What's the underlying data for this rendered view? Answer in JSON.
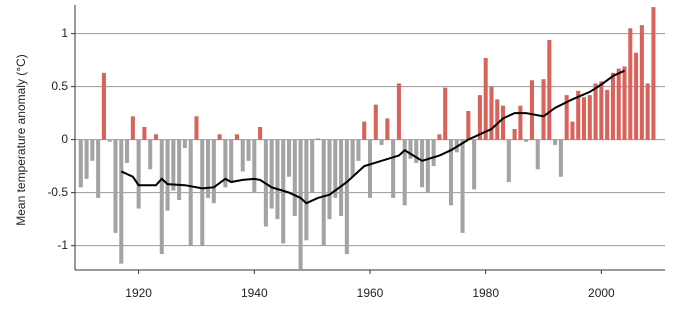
{
  "chart_data": {
    "type": "bar",
    "y_label": "Mean temperature anomaly (°C)",
    "x": [
      1910,
      1911,
      1912,
      1913,
      1914,
      1915,
      1916,
      1917,
      1918,
      1919,
      1920,
      1921,
      1922,
      1923,
      1924,
      1925,
      1926,
      1927,
      1928,
      1929,
      1930,
      1931,
      1932,
      1933,
      1934,
      1935,
      1936,
      1937,
      1938,
      1939,
      1940,
      1941,
      1942,
      1943,
      1944,
      1945,
      1946,
      1947,
      1948,
      1949,
      1950,
      1951,
      1952,
      1953,
      1954,
      1955,
      1956,
      1957,
      1958,
      1959,
      1960,
      1961,
      1962,
      1963,
      1964,
      1965,
      1966,
      1967,
      1968,
      1969,
      1970,
      1971,
      1972,
      1973,
      1974,
      1975,
      1976,
      1977,
      1978,
      1979,
      1980,
      1981,
      1982,
      1983,
      1984,
      1985,
      1986,
      1987,
      1988,
      1989,
      1990,
      1991,
      1992,
      1993,
      1994,
      1995,
      1996,
      1997,
      1998,
      1999,
      2000,
      2001,
      2002,
      2003,
      2004,
      2005,
      2006,
      2007,
      2008,
      2009
    ],
    "values": [
      -0.45,
      -0.37,
      -0.2,
      -0.55,
      0.63,
      -0.02,
      -0.88,
      -1.17,
      -0.22,
      0.22,
      -0.65,
      0.12,
      -0.28,
      0.05,
      -1.08,
      -0.67,
      -0.48,
      -0.57,
      -0.08,
      -1.0,
      0.22,
      -1.0,
      -0.55,
      -0.6,
      0.05,
      -0.45,
      -0.4,
      0.05,
      -0.3,
      -0.2,
      -0.5,
      0.12,
      -0.82,
      -0.65,
      -0.75,
      -0.98,
      -0.35,
      -0.72,
      -1.22,
      -0.95,
      -0.5,
      0.01,
      -1.0,
      -0.75,
      -0.55,
      -0.72,
      -1.08,
      -0.35,
      -0.2,
      0.17,
      -0.55,
      0.33,
      -0.05,
      0.2,
      -0.55,
      0.53,
      -0.62,
      -0.18,
      -0.22,
      -0.45,
      -0.5,
      -0.25,
      0.05,
      0.49,
      -0.62,
      -0.12,
      -0.88,
      0.27,
      -0.47,
      0.42,
      0.77,
      0.5,
      0.38,
      0.32,
      -0.4,
      0.1,
      0.32,
      -0.02,
      0.56,
      -0.28,
      0.57,
      0.94,
      -0.05,
      -0.35,
      0.42,
      0.17,
      0.46,
      0.4,
      0.42,
      0.53,
      0.55,
      0.47,
      0.63,
      0.67,
      0.69,
      1.05,
      0.82,
      1.08,
      0.53,
      1.25
    ],
    "positive_color": "#d9625b",
    "negative_color": "#a3a3a3",
    "line": {
      "color": "#000000",
      "x": [
        1917,
        1919,
        1920,
        1923,
        1924,
        1925,
        1928,
        1931,
        1933,
        1935,
        1936,
        1938,
        1940,
        1941,
        1943,
        1946,
        1948,
        1949,
        1951,
        1953,
        1956,
        1957,
        1959,
        1962,
        1965,
        1966,
        1969,
        1972,
        1974,
        1977,
        1979,
        1981,
        1983,
        1985,
        1987,
        1990,
        1992,
        1995,
        1998,
        2000,
        2002,
        2004
      ],
      "values": [
        -0.3,
        -0.35,
        -0.43,
        -0.43,
        -0.37,
        -0.42,
        -0.43,
        -0.46,
        -0.45,
        -0.37,
        -0.4,
        -0.38,
        -0.37,
        -0.38,
        -0.45,
        -0.5,
        -0.55,
        -0.6,
        -0.55,
        -0.52,
        -0.4,
        -0.35,
        -0.25,
        -0.2,
        -0.15,
        -0.1,
        -0.2,
        -0.15,
        -0.1,
        0,
        0.05,
        0.1,
        0.2,
        0.25,
        0.25,
        0.22,
        0.3,
        0.38,
        0.45,
        0.52,
        0.6,
        0.65
      ]
    },
    "xlim": [
      1909,
      2011
    ],
    "xticks": [
      1920,
      1940,
      1960,
      1980,
      2000
    ],
    "ylim": [
      -1.23,
      1.27
    ],
    "yticks": [
      -1,
      -0.5,
      0,
      0.5,
      1
    ],
    "grid": true
  }
}
